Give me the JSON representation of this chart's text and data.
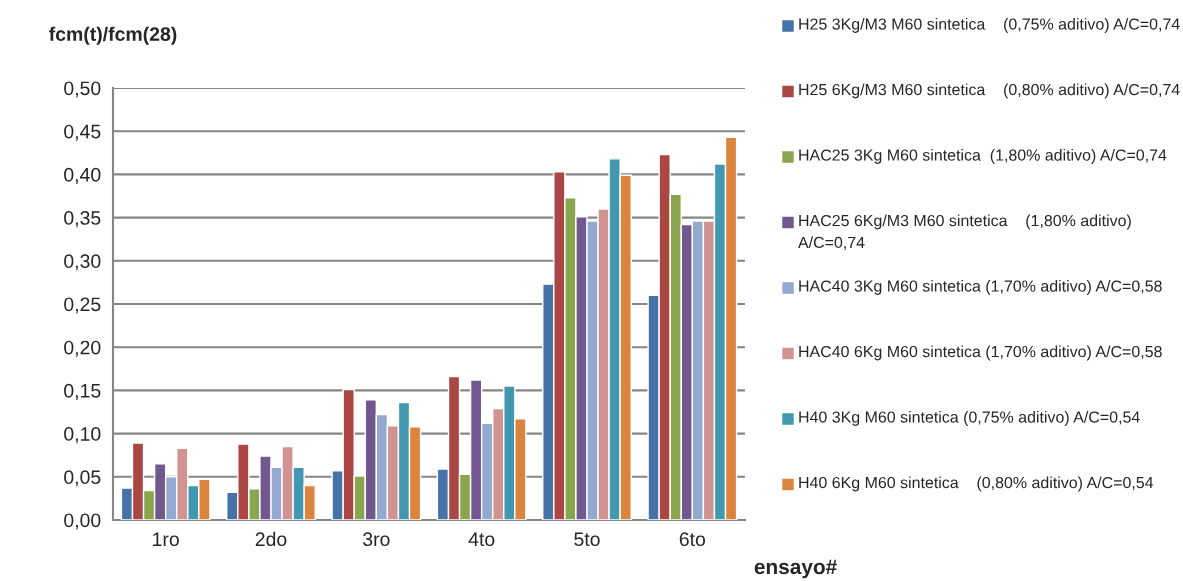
{
  "chart_data": {
    "type": "bar",
    "ylabel": "fcm(t)/fcm(28)",
    "xlabel": "ensayo#",
    "categories": [
      "1ro",
      "2do",
      "3ro",
      "4to",
      "5to",
      "6to"
    ],
    "series": [
      {
        "name": "H25 3Kg/M3 M60 sintetica    (0,75% aditivo) A/C=0,74",
        "color": "#4572a7",
        "values": [
          0.037,
          0.032,
          0.057,
          0.059,
          0.273,
          0.26
        ]
      },
      {
        "name": "H25 6Kg/M3 M60 sintetica    (0,80% aditivo) A/C=0,74",
        "color": "#aa4643",
        "values": [
          0.089,
          0.088,
          0.151,
          0.166,
          0.403,
          0.423
        ]
      },
      {
        "name": "HAC25 3Kg M60 sintetica  (1,80% aditivo) A/C=0,74",
        "color": "#89a54e",
        "values": [
          0.034,
          0.036,
          0.051,
          0.053,
          0.373,
          0.377
        ]
      },
      {
        "name": "HAC25 6Kg/M3 M60 sintetica    (1,80% aditivo) A/C=0,74",
        "color": "#71588f",
        "values": [
          0.065,
          0.074,
          0.139,
          0.162,
          0.351,
          0.342
        ]
      },
      {
        "name": "HAC40 3Kg M60 sintetica (1,70% aditivo) A/C=0,58",
        "color": "#93a9cf",
        "values": [
          0.05,
          0.061,
          0.122,
          0.112,
          0.346,
          0.346
        ]
      },
      {
        "name": "HAC40 6Kg M60 sintetica (1,70% aditivo) A/C=0,58",
        "color": "#d19392",
        "values": [
          0.083,
          0.085,
          0.109,
          0.129,
          0.36,
          0.346
        ]
      },
      {
        "name": "H40 3Kg M60 sintetica (0,75% aditivo) A/C=0,54",
        "color": "#4198af",
        "values": [
          0.04,
          0.061,
          0.136,
          0.155,
          0.418,
          0.412
        ]
      },
      {
        "name": "H40 6Kg M60 sintetica    (0,80% aditivo) A/C=0,54",
        "color": "#db843d",
        "values": [
          0.047,
          0.04,
          0.108,
          0.117,
          0.399,
          0.443
        ]
      }
    ],
    "ylim": [
      0,
      0.5
    ],
    "yticks": [
      {
        "value": 0,
        "label": "0,00"
      },
      {
        "value": 0.05,
        "label": "0,05"
      },
      {
        "value": 0.1,
        "label": "0,10"
      },
      {
        "value": 0.15,
        "label": "0,15"
      },
      {
        "value": 0.2,
        "label": "0,20"
      },
      {
        "value": 0.25,
        "label": "0,25"
      },
      {
        "value": 0.3,
        "label": "0,30"
      },
      {
        "value": 0.35,
        "label": "0,35"
      },
      {
        "value": 0.4,
        "label": "0,40"
      },
      {
        "value": 0.45,
        "label": "0,45"
      },
      {
        "value": 0.5,
        "label": "0,50"
      }
    ],
    "grid": "y",
    "legend": "right"
  }
}
